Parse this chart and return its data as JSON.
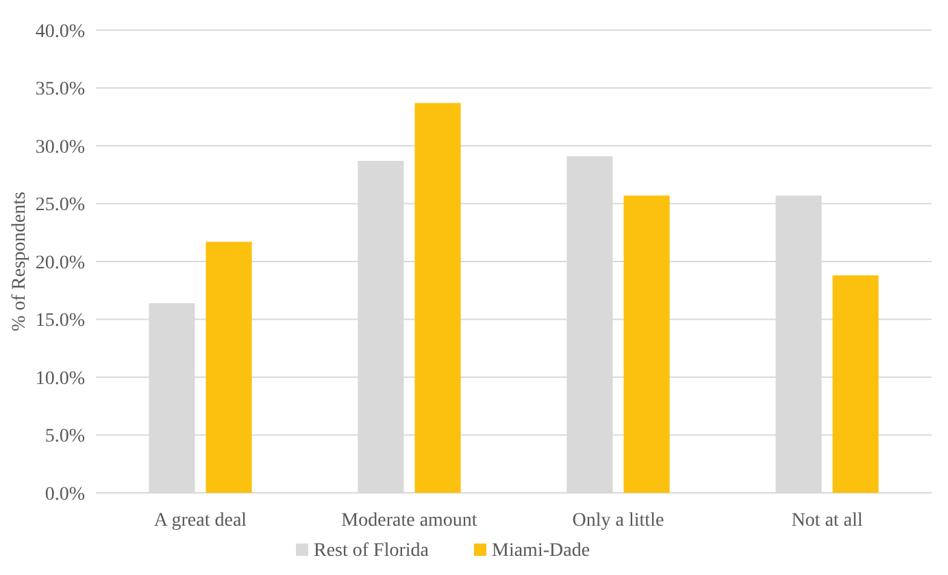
{
  "chart_data": {
    "type": "bar",
    "ylabel": "% of Respondents",
    "categories": [
      "A great deal",
      "Moderate amount",
      "Only a little",
      "Not at all"
    ],
    "series": [
      {
        "name": "Rest of Florida",
        "color": "#d9d9d9",
        "values": [
          16.4,
          28.7,
          29.1,
          25.7
        ]
      },
      {
        "name": "Miami-Dade",
        "color": "#fcc00e",
        "values": [
          21.7,
          33.7,
          25.7,
          18.8
        ]
      }
    ],
    "ylim": [
      0,
      40
    ],
    "yticks": [
      {
        "value": 0,
        "label": "0.0%"
      },
      {
        "value": 5,
        "label": "5.0%"
      },
      {
        "value": 10,
        "label": "10.0%"
      },
      {
        "value": 15,
        "label": "15.0%"
      },
      {
        "value": 20,
        "label": "20.0%"
      },
      {
        "value": 25,
        "label": "25.0%"
      },
      {
        "value": 30,
        "label": "30.0%"
      },
      {
        "value": 35,
        "label": "35.0%"
      },
      {
        "value": 40,
        "label": "40.0%"
      }
    ],
    "grid": "y",
    "legend": "bottom"
  }
}
